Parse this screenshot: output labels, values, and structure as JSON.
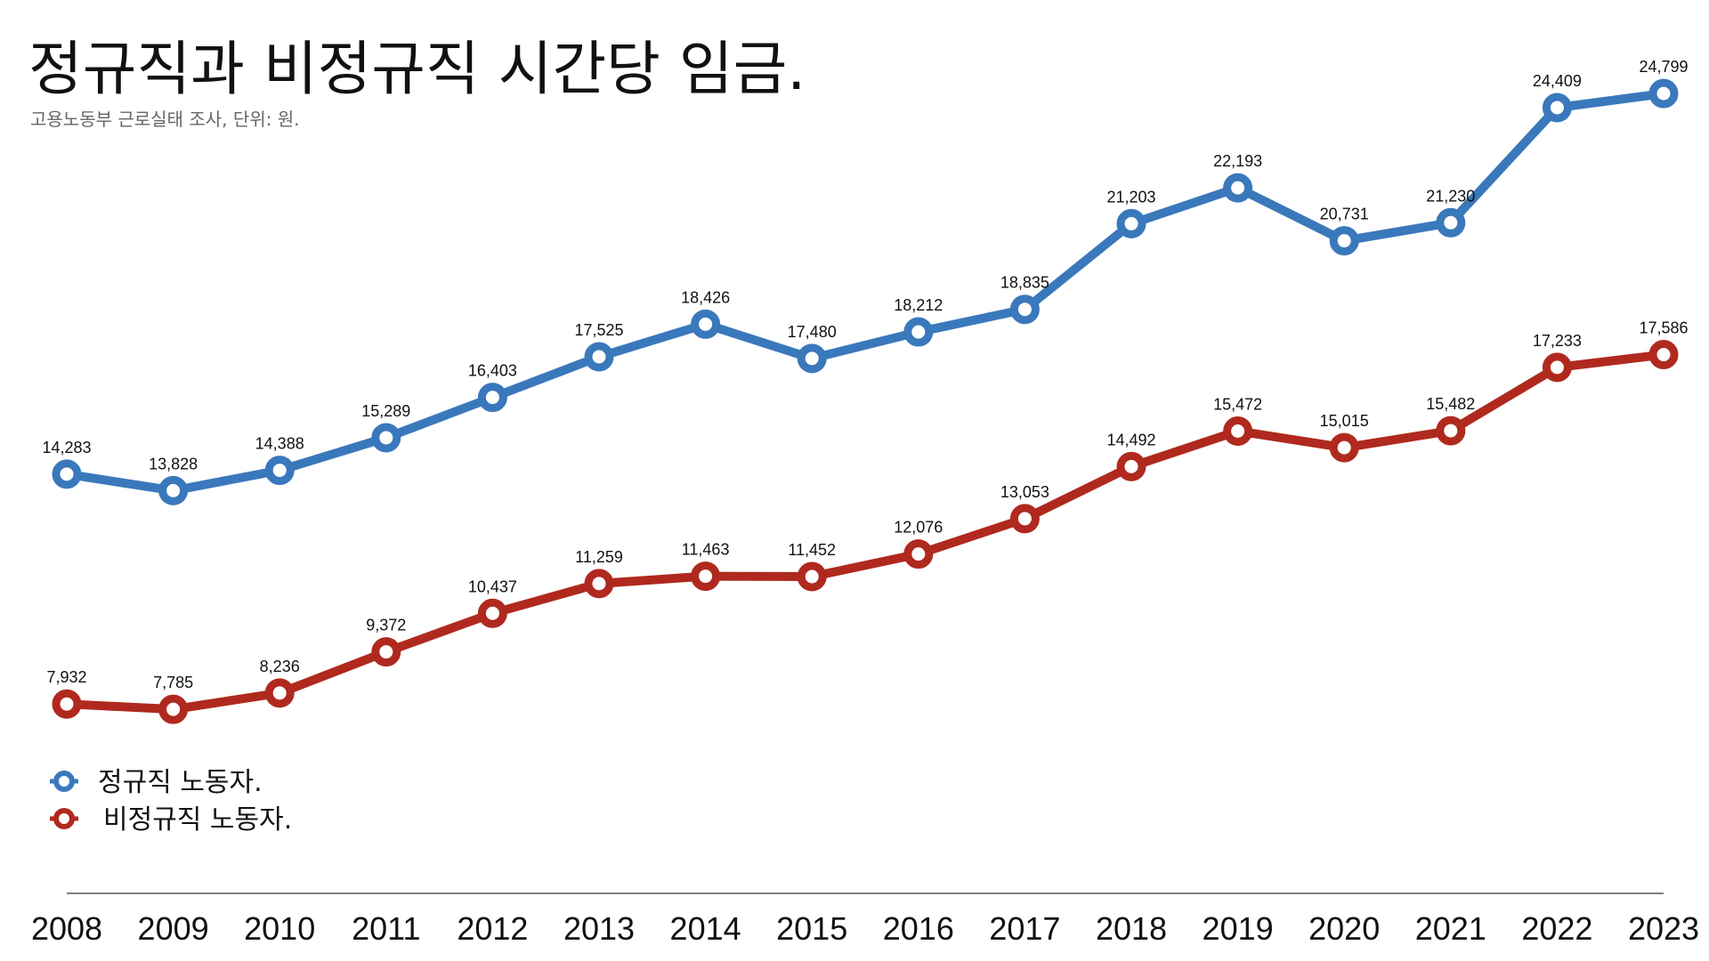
{
  "title": "정규직과 비정규직 시간당 임금.",
  "subtitle": "고용노동부 근로실태 조사, 단위: 원.",
  "chart_data": {
    "type": "line",
    "title": "정규직과 비정규직 시간당 임금.",
    "subtitle": "고용노동부 근로실태 조사, 단위: 원.",
    "x": [
      "2008",
      "2009",
      "2010",
      "2011",
      "2012",
      "2013",
      "2014",
      "2015",
      "2016",
      "2017",
      "2018",
      "2019",
      "2020",
      "2021",
      "2022",
      "2023"
    ],
    "series": [
      {
        "name": "정규직 노동자.",
        "color": "#3a78bc",
        "values": [
          14283,
          13828,
          14388,
          15289,
          16403,
          17525,
          18426,
          17480,
          18212,
          18835,
          21203,
          22193,
          20731,
          21230,
          24409,
          24799
        ],
        "labels": [
          "14,283",
          "13,828",
          "14,388",
          "15,289",
          "16,403",
          "17,525",
          "18,426",
          "17,480",
          "18,212",
          "18,835",
          "21,203",
          "22,193",
          "20,731",
          "21,230",
          "24,409",
          "24,799"
        ]
      },
      {
        "name": "비정규직 노동자.",
        "color": "#b0291e",
        "values": [
          7932,
          7785,
          8236,
          9372,
          10437,
          11259,
          11463,
          11452,
          12076,
          13053,
          14492,
          15472,
          15015,
          15482,
          17233,
          17586
        ],
        "labels": [
          "7,932",
          "7,785",
          "8,236",
          "9,372",
          "10,437",
          "11,259",
          "11,463",
          "11,452",
          "12,076",
          "13,053",
          "14,492",
          "15,472",
          "15,015",
          "15,482",
          "17,233",
          "17,586"
        ]
      }
    ],
    "ylim": [
      2700,
      26400
    ],
    "grid": false,
    "yaxis_visible": false,
    "legend_position": "bottom-left"
  }
}
